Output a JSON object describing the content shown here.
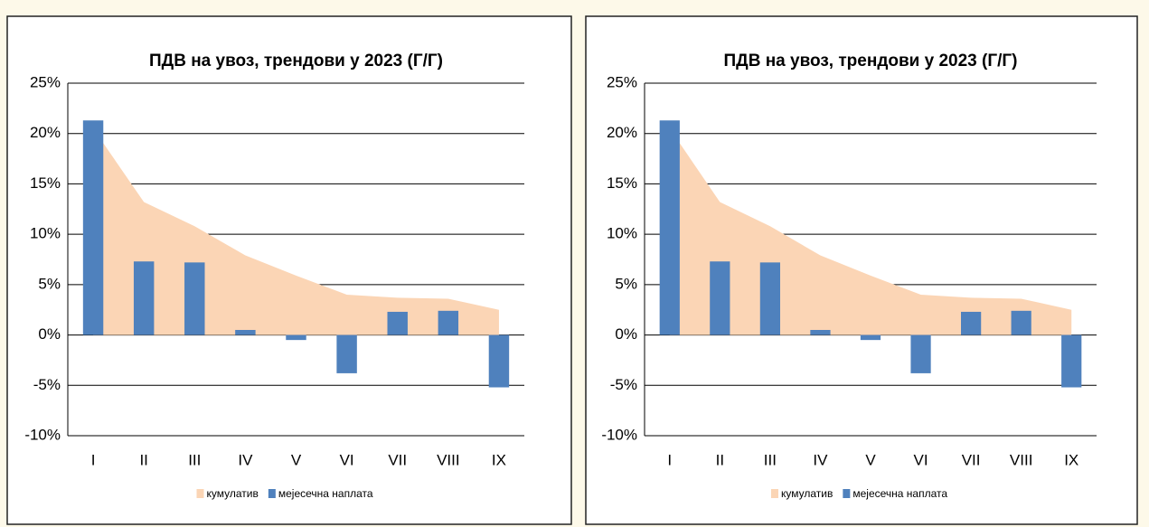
{
  "chart_data": [
    {
      "type": "bar",
      "title": "ПДВ на увоз, трендови у 2023 (Г/Г)",
      "categories": [
        "I",
        "II",
        "III",
        "IV",
        "V",
        "VI",
        "VII",
        "VIII",
        "IX"
      ],
      "series": [
        {
          "name": "кумулатив",
          "type": "area",
          "color": "#fbd5b5",
          "values": [
            20.5,
            13.2,
            10.8,
            7.9,
            5.9,
            4.0,
            3.7,
            3.6,
            2.5
          ]
        },
        {
          "name": "мејесечна наплата",
          "type": "bar",
          "color": "#4f81bd",
          "values": [
            21.3,
            7.3,
            7.2,
            0.5,
            -0.5,
            -3.8,
            2.3,
            2.4,
            -5.2
          ]
        }
      ],
      "ylim": [
        -10,
        25
      ],
      "yticks": [
        {
          "value": -10,
          "label": "-10%"
        },
        {
          "value": -5,
          "label": "-5%"
        },
        {
          "value": 0,
          "label": "0%"
        },
        {
          "value": 5,
          "label": "5%"
        },
        {
          "value": 10,
          "label": "10%"
        },
        {
          "value": 15,
          "label": "15%"
        },
        {
          "value": 20,
          "label": "20%"
        },
        {
          "value": 25,
          "label": "25%"
        }
      ],
      "grid": true
    },
    {
      "type": "bar",
      "title": "ПДВ на увоз, трендови у 2023 (Г/Г)",
      "categories": [
        "I",
        "II",
        "III",
        "IV",
        "V",
        "VI",
        "VII",
        "VIII",
        "IX"
      ],
      "series": [
        {
          "name": "кумулатив",
          "type": "area",
          "color": "#fbd5b5",
          "values": [
            20.5,
            13.2,
            10.8,
            7.9,
            5.9,
            4.0,
            3.7,
            3.6,
            2.5
          ]
        },
        {
          "name": "мејесечна наплата",
          "type": "bar",
          "color": "#4f81bd",
          "values": [
            21.3,
            7.3,
            7.2,
            0.5,
            -0.5,
            -3.8,
            2.3,
            2.4,
            -5.2
          ]
        }
      ],
      "ylim": [
        -10,
        25
      ],
      "yticks": [
        {
          "value": -10,
          "label": "-10%"
        },
        {
          "value": -5,
          "label": "-5%"
        },
        {
          "value": 0,
          "label": "0%"
        },
        {
          "value": 5,
          "label": "5%"
        },
        {
          "value": 10,
          "label": "10%"
        },
        {
          "value": 15,
          "label": "15%"
        },
        {
          "value": 20,
          "label": "20%"
        },
        {
          "value": 25,
          "label": "25%"
        }
      ],
      "grid": true
    }
  ]
}
